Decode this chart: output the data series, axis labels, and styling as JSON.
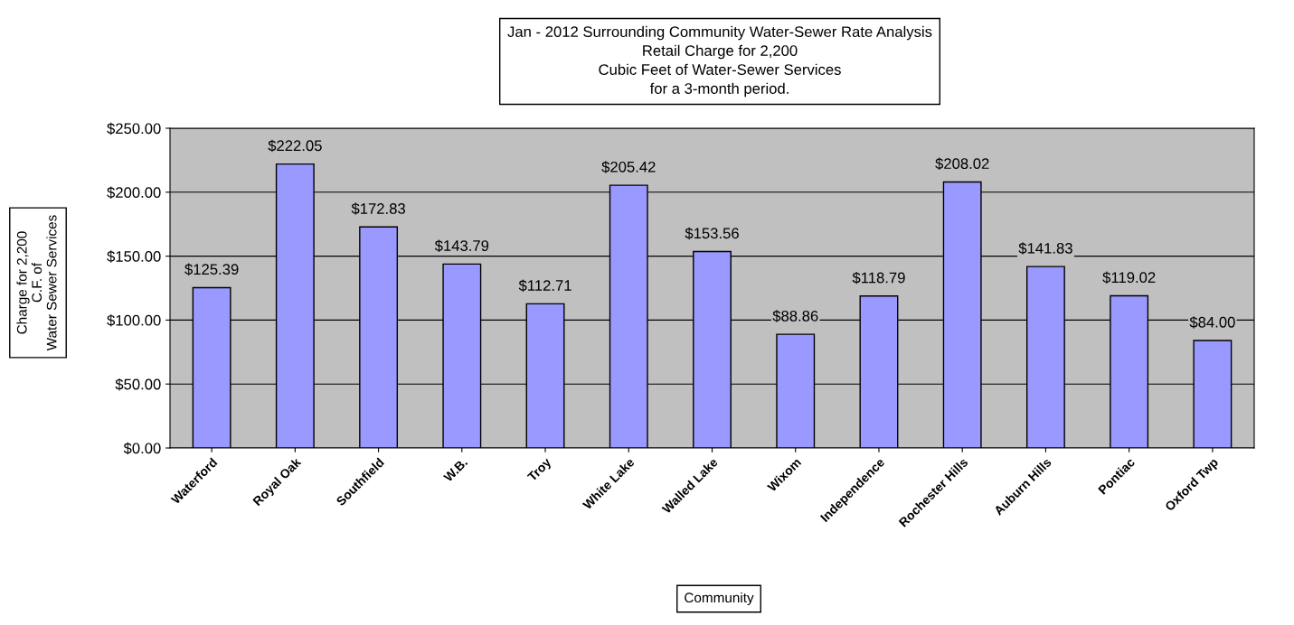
{
  "chart_data": {
    "type": "bar",
    "title": "Jan - 2012 Surrounding Community Water-Sewer Rate Analysis\nRetail Charge for 2,200\nCubic Feet of Water-Sewer Services\nfor a 3-month period.",
    "xlabel": "Community",
    "ylabel": "Charge for 2,200\nC.F. of\nWater Sewer Services",
    "categories": [
      "Waterford",
      "Royal Oak",
      "Southfield",
      "W.B.",
      "Troy",
      "White Lake",
      "Walled Lake",
      "Wixom",
      "Independence",
      "Rochester Hills",
      "Auburn Hills",
      "Pontiac",
      "Oxford Twp"
    ],
    "values": [
      125.39,
      222.05,
      172.83,
      143.79,
      112.71,
      205.42,
      153.56,
      88.86,
      118.79,
      208.02,
      141.83,
      119.02,
      84.0
    ],
    "value_labels": [
      "$125.39",
      "$222.05",
      "$172.83",
      "$143.79",
      "$112.71",
      "$205.42",
      "$153.56",
      "$88.86",
      "$118.79",
      "$208.02",
      "$141.83",
      "$119.02",
      "$84.00"
    ],
    "color": "#9999ff",
    "ylim": [
      0,
      250
    ],
    "yticks": [
      {
        "value": 0,
        "label": "$0.00"
      },
      {
        "value": 50,
        "label": "$50.00"
      },
      {
        "value": 100,
        "label": "$100.00"
      },
      {
        "value": 150,
        "label": "$150.00"
      },
      {
        "value": 200,
        "label": "$200.00"
      },
      {
        "value": 250,
        "label": "$250.00"
      }
    ],
    "grid": "y"
  }
}
